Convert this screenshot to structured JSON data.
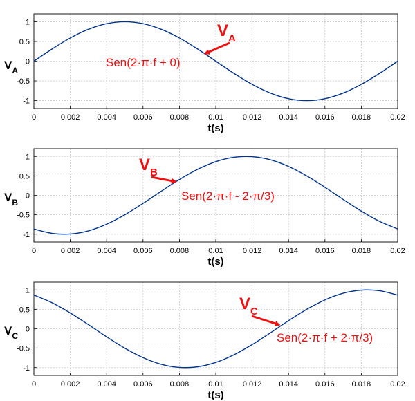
{
  "colors": {
    "curve": "#00338c",
    "annotation": "#ee1111",
    "grid": "#c9c9c9",
    "axes": "#000000"
  },
  "chart_data": [
    {
      "type": "line",
      "xlabel": "t(s)",
      "ylabel": {
        "main": "V",
        "sub": "A"
      },
      "xlim": [
        0,
        0.02
      ],
      "ylim": [
        -1.2,
        1.2
      ],
      "xticks": [
        "0",
        "0.002",
        "0.004",
        "0.006",
        "0.008",
        "0.01",
        "0.012",
        "0.014",
        "0.016",
        "0.018",
        "0.02"
      ],
      "yticks": [
        "1",
        "0.5",
        "0",
        "-0.5",
        "-1"
      ],
      "grid": true,
      "series": [
        {
          "x": [
            0,
            0.001,
            0.002,
            0.003,
            0.004,
            0.005,
            0.006,
            0.007,
            0.008,
            0.009,
            0.01,
            0.011,
            0.012,
            0.013,
            0.014,
            0.015,
            0.016,
            0.017,
            0.018,
            0.019,
            0.02
          ],
          "values": [
            0,
            0.309,
            0.588,
            0.809,
            0.951,
            1,
            0.951,
            0.809,
            0.588,
            0.309,
            0,
            -0.309,
            -0.588,
            -0.809,
            -0.951,
            -1,
            -0.951,
            -0.809,
            -0.588,
            -0.309,
            0
          ]
        }
      ],
      "annotations": [
        {
          "label": "V",
          "label_sub": "A",
          "text": "Sen(2·π·f + 0)",
          "target": [
            0.0094,
            0.19
          ]
        }
      ]
    },
    {
      "type": "line",
      "xlabel": "t(s)",
      "ylabel": {
        "main": "V",
        "sub": "B"
      },
      "xlim": [
        0,
        0.02
      ],
      "ylim": [
        -1.2,
        1.2
      ],
      "xticks": [
        "0",
        "0.002",
        "0.004",
        "0.006",
        "0.008",
        "0.01",
        "0.012",
        "0.014",
        "0.016",
        "0.018",
        "0.02"
      ],
      "yticks": [
        "1",
        "0.5",
        "0",
        "-0.5",
        "-1"
      ],
      "grid": true,
      "series": [
        {
          "x": [
            0,
            0.001,
            0.002,
            0.003,
            0.004,
            0.005,
            0.006,
            0.007,
            0.008,
            0.009,
            0.01,
            0.011,
            0.012,
            0.013,
            0.014,
            0.015,
            0.016,
            0.017,
            0.018,
            0.019,
            0.02
          ],
          "values": [
            -0.866,
            -0.978,
            -0.995,
            -0.914,
            -0.743,
            -0.5,
            -0.208,
            0.105,
            0.407,
            0.669,
            0.866,
            0.978,
            0.995,
            0.914,
            0.743,
            0.5,
            0.208,
            -0.105,
            -0.407,
            -0.669,
            -0.866
          ]
        }
      ],
      "annotations": [
        {
          "label": "V",
          "label_sub": "B",
          "text": "Sen(2·π·f - 2·π/3)",
          "target": [
            0.0078,
            0.35
          ]
        }
      ]
    },
    {
      "type": "line",
      "xlabel": "t(s)",
      "ylabel": {
        "main": "V",
        "sub": "C"
      },
      "xlim": [
        0,
        0.02
      ],
      "ylim": [
        -1.2,
        1.2
      ],
      "xticks": [
        "0",
        "0.002",
        "0.004",
        "0.006",
        "0.008",
        "0.01",
        "0.012",
        "0.014",
        "0.016",
        "0.018",
        "0.02"
      ],
      "yticks": [
        "1",
        "0.5",
        "0",
        "-0.5",
        "-1"
      ],
      "grid": true,
      "series": [
        {
          "x": [
            0,
            0.001,
            0.002,
            0.003,
            0.004,
            0.005,
            0.006,
            0.007,
            0.008,
            0.009,
            0.01,
            0.011,
            0.012,
            0.013,
            0.014,
            0.015,
            0.016,
            0.017,
            0.018,
            0.019,
            0.02
          ],
          "values": [
            0.866,
            0.669,
            0.407,
            0.105,
            -0.208,
            -0.5,
            -0.743,
            -0.914,
            -0.995,
            -0.978,
            -0.866,
            -0.669,
            -0.407,
            -0.105,
            0.208,
            0.5,
            0.743,
            0.914,
            0.995,
            0.978,
            0.866
          ]
        }
      ],
      "annotations": [
        {
          "label": "V",
          "label_sub": "C",
          "text": "Sen(2·π·f + 2·π/3)",
          "target": [
            0.0135,
            0.1
          ]
        }
      ]
    }
  ]
}
